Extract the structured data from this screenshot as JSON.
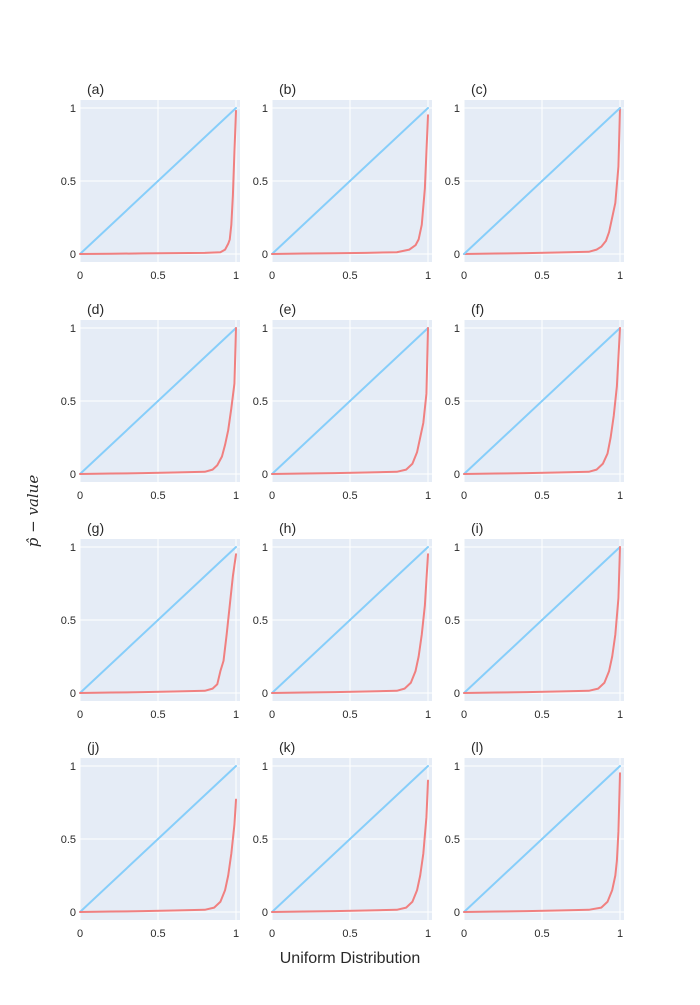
{
  "figure": {
    "x_title": "Uniform Distribution",
    "y_title": "p̂ − value"
  },
  "colors": {
    "plot_bg": "#e5ecf6",
    "grid": "#ffffff",
    "reference_line": "#87cefa",
    "pvalue_line": "#f08080"
  },
  "chart_data": [
    {
      "label": "(a)",
      "type": "line",
      "xlim": [
        0,
        1
      ],
      "ylim": [
        0,
        1
      ],
      "xticks": [
        "0",
        "0.5",
        "1"
      ],
      "yticks": [
        "0",
        "0.5",
        "1"
      ],
      "series": [
        {
          "x": [
            0,
            1
          ],
          "y": [
            0,
            1
          ]
        },
        {
          "x": [
            0,
            0.2,
            0.4,
            0.6,
            0.8,
            0.9,
            0.93,
            0.95,
            0.96,
            0.97,
            0.98,
            0.99,
            1.0
          ],
          "y": [
            0,
            0.002,
            0.004,
            0.006,
            0.008,
            0.012,
            0.03,
            0.07,
            0.1,
            0.2,
            0.4,
            0.7,
            0.98
          ]
        }
      ]
    },
    {
      "label": "(b)",
      "type": "line",
      "xlim": [
        0,
        1
      ],
      "ylim": [
        0,
        1
      ],
      "xticks": [
        "0",
        "0.5",
        "1"
      ],
      "yticks": [
        "0",
        "0.5",
        "1"
      ],
      "series": [
        {
          "x": [
            0,
            1
          ],
          "y": [
            0,
            1
          ]
        },
        {
          "x": [
            0,
            0.2,
            0.4,
            0.6,
            0.8,
            0.88,
            0.92,
            0.94,
            0.96,
            0.98,
            0.99,
            1.0
          ],
          "y": [
            0,
            0.003,
            0.005,
            0.008,
            0.012,
            0.03,
            0.06,
            0.1,
            0.2,
            0.45,
            0.7,
            0.95
          ]
        }
      ]
    },
    {
      "label": "(c)",
      "type": "line",
      "xlim": [
        0,
        1
      ],
      "ylim": [
        0,
        1
      ],
      "xticks": [
        "0",
        "0.5",
        "1"
      ],
      "yticks": [
        "0",
        "0.5",
        "1"
      ],
      "series": [
        {
          "x": [
            0,
            0.2,
            0.4,
            0.6,
            0.8,
            0.85,
            0.88,
            0.91,
            0.93,
            0.95,
            0.97,
            0.99,
            1.0
          ],
          "y": [
            0,
            0.003,
            0.006,
            0.01,
            0.015,
            0.03,
            0.05,
            0.09,
            0.15,
            0.25,
            0.35,
            0.6,
            1.0
          ]
        },
        {
          "x": [
            0,
            1
          ],
          "y": [
            0,
            1
          ]
        }
      ]
    },
    {
      "label": "(d)",
      "type": "line",
      "xlim": [
        0,
        1
      ],
      "ylim": [
        0,
        1
      ],
      "xticks": [
        "0",
        "0.5",
        "1"
      ],
      "yticks": [
        "0",
        "0.5",
        "1"
      ],
      "series": [
        {
          "x": [
            0,
            1
          ],
          "y": [
            0,
            1
          ]
        },
        {
          "x": [
            0,
            0.2,
            0.4,
            0.6,
            0.8,
            0.85,
            0.88,
            0.91,
            0.93,
            0.95,
            0.97,
            0.99,
            1.0
          ],
          "y": [
            0,
            0.003,
            0.006,
            0.01,
            0.015,
            0.03,
            0.06,
            0.12,
            0.2,
            0.3,
            0.45,
            0.62,
            1.0
          ]
        }
      ]
    },
    {
      "label": "(e)",
      "type": "line",
      "xlim": [
        0,
        1
      ],
      "ylim": [
        0,
        1
      ],
      "xticks": [
        "0",
        "0.5",
        "1"
      ],
      "yticks": [
        "0",
        "0.5",
        "1"
      ],
      "series": [
        {
          "x": [
            0,
            1
          ],
          "y": [
            0,
            1
          ]
        },
        {
          "x": [
            0,
            0.2,
            0.4,
            0.6,
            0.8,
            0.86,
            0.9,
            0.93,
            0.95,
            0.97,
            0.99,
            1.0
          ],
          "y": [
            0,
            0.003,
            0.006,
            0.01,
            0.015,
            0.03,
            0.07,
            0.15,
            0.25,
            0.35,
            0.55,
            1.0
          ]
        }
      ]
    },
    {
      "label": "(f)",
      "type": "line",
      "xlim": [
        0,
        1
      ],
      "ylim": [
        0,
        1
      ],
      "xticks": [
        "0",
        "0.5",
        "1"
      ],
      "yticks": [
        "0",
        "0.5",
        "1"
      ],
      "series": [
        {
          "x": [
            0,
            1
          ],
          "y": [
            0,
            1
          ]
        },
        {
          "x": [
            0,
            0.2,
            0.4,
            0.6,
            0.8,
            0.85,
            0.89,
            0.92,
            0.94,
            0.96,
            0.98,
            1.0
          ],
          "y": [
            0,
            0.003,
            0.006,
            0.01,
            0.015,
            0.03,
            0.07,
            0.14,
            0.25,
            0.4,
            0.6,
            1.0
          ]
        }
      ]
    },
    {
      "label": "(g)",
      "type": "line",
      "xlim": [
        0,
        1
      ],
      "ylim": [
        0,
        1
      ],
      "xticks": [
        "0",
        "0.5",
        "1"
      ],
      "yticks": [
        "0",
        "0.5",
        "1"
      ],
      "series": [
        {
          "x": [
            0,
            1
          ],
          "y": [
            0,
            1
          ]
        },
        {
          "x": [
            0,
            0.2,
            0.4,
            0.6,
            0.8,
            0.85,
            0.88,
            0.9,
            0.92,
            0.94,
            0.96,
            0.98,
            1.0
          ],
          "y": [
            0,
            0.003,
            0.006,
            0.01,
            0.015,
            0.03,
            0.06,
            0.15,
            0.22,
            0.4,
            0.6,
            0.8,
            0.95
          ]
        }
      ]
    },
    {
      "label": "(h)",
      "type": "line",
      "xlim": [
        0,
        1
      ],
      "ylim": [
        0,
        1
      ],
      "xticks": [
        "0",
        "0.5",
        "1"
      ],
      "yticks": [
        "0",
        "0.5",
        "1"
      ],
      "series": [
        {
          "x": [
            0,
            1
          ],
          "y": [
            0,
            1
          ]
        },
        {
          "x": [
            0,
            0.2,
            0.4,
            0.6,
            0.8,
            0.85,
            0.89,
            0.92,
            0.94,
            0.96,
            0.98,
            1.0
          ],
          "y": [
            0,
            0.003,
            0.006,
            0.01,
            0.015,
            0.03,
            0.07,
            0.15,
            0.25,
            0.4,
            0.6,
            0.95
          ]
        }
      ]
    },
    {
      "label": "(i)",
      "type": "line",
      "xlim": [
        0,
        1
      ],
      "ylim": [
        0,
        1
      ],
      "xticks": [
        "0",
        "0.5",
        "1"
      ],
      "yticks": [
        "0",
        "0.5",
        "1"
      ],
      "series": [
        {
          "x": [
            0,
            1
          ],
          "y": [
            0,
            1
          ]
        },
        {
          "x": [
            0,
            0.2,
            0.4,
            0.6,
            0.8,
            0.86,
            0.9,
            0.93,
            0.95,
            0.97,
            0.99,
            1.0
          ],
          "y": [
            0,
            0.003,
            0.006,
            0.01,
            0.015,
            0.03,
            0.07,
            0.15,
            0.25,
            0.4,
            0.65,
            1.0
          ]
        }
      ]
    },
    {
      "label": "(j)",
      "type": "line",
      "xlim": [
        0,
        1
      ],
      "ylim": [
        0,
        1
      ],
      "xticks": [
        "0",
        "0.5",
        "1"
      ],
      "yticks": [
        "0",
        "0.5",
        "1"
      ],
      "series": [
        {
          "x": [
            0,
            1
          ],
          "y": [
            0,
            1
          ]
        },
        {
          "x": [
            0,
            0.2,
            0.4,
            0.6,
            0.8,
            0.86,
            0.9,
            0.93,
            0.95,
            0.97,
            0.99,
            1.0
          ],
          "y": [
            0,
            0.003,
            0.006,
            0.01,
            0.015,
            0.03,
            0.07,
            0.15,
            0.25,
            0.4,
            0.6,
            0.77
          ]
        }
      ]
    },
    {
      "label": "(k)",
      "type": "line",
      "xlim": [
        0,
        1
      ],
      "ylim": [
        0,
        1
      ],
      "xticks": [
        "0",
        "0.5",
        "1"
      ],
      "yticks": [
        "0",
        "0.5",
        "1"
      ],
      "series": [
        {
          "x": [
            0,
            1
          ],
          "y": [
            0,
            1
          ]
        },
        {
          "x": [
            0,
            0.2,
            0.4,
            0.6,
            0.8,
            0.86,
            0.9,
            0.93,
            0.95,
            0.97,
            0.99,
            1.0
          ],
          "y": [
            0,
            0.003,
            0.006,
            0.01,
            0.015,
            0.03,
            0.07,
            0.15,
            0.25,
            0.4,
            0.65,
            0.9
          ]
        }
      ]
    },
    {
      "label": "(l)",
      "type": "line",
      "xlim": [
        0,
        1
      ],
      "ylim": [
        0,
        1
      ],
      "xticks": [
        "0",
        "0.5",
        "1"
      ],
      "yticks": [
        "0",
        "0.5",
        "1"
      ],
      "series": [
        {
          "x": [
            0,
            1
          ],
          "y": [
            0,
            1
          ]
        },
        {
          "x": [
            0,
            0.2,
            0.4,
            0.6,
            0.8,
            0.88,
            0.92,
            0.95,
            0.97,
            0.98,
            0.99,
            1.0
          ],
          "y": [
            0,
            0.003,
            0.006,
            0.01,
            0.015,
            0.03,
            0.07,
            0.15,
            0.25,
            0.35,
            0.55,
            0.95
          ]
        }
      ]
    }
  ]
}
